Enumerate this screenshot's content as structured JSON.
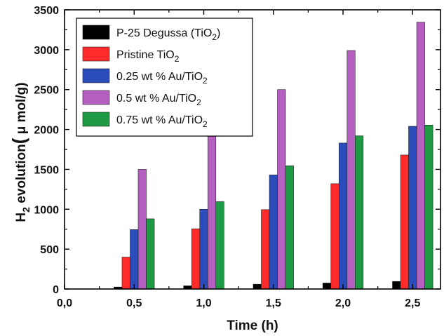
{
  "chart_data": {
    "type": "bar",
    "title": "",
    "xlabel": "Time (h)",
    "ylabel": {
      "main": "H",
      "sub": "2",
      "rest": " evolution",
      "paren_open": "(",
      "unit": " μ mol/g)"
    },
    "x": [
      0.5,
      1.0,
      1.5,
      2.0,
      2.5
    ],
    "xlim": [
      0.0,
      2.7
    ],
    "ylim": [
      0,
      3500
    ],
    "xticks": [
      0.0,
      0.5,
      1.0,
      1.5,
      2.0,
      2.5
    ],
    "xtick_labels": [
      "0,0",
      "0,5",
      "1,0",
      "1,5",
      "2,0",
      "2,5"
    ],
    "yticks": [
      0,
      500,
      1000,
      1500,
      2000,
      2500,
      3000,
      3500
    ],
    "ytick_labels": [
      "0",
      "500",
      "1000",
      "1500",
      "2000",
      "2500",
      "3000",
      "3500"
    ],
    "grid": false,
    "legend_position": "top-left",
    "series": [
      {
        "name": "P-25 Degussa (TiO",
        "name_sub": "2",
        "name_tail": ")",
        "color": "#000000",
        "values": [
          25,
          40,
          60,
          75,
          95
        ]
      },
      {
        "name": "Pristine TiO",
        "name_sub": "2",
        "name_tail": "",
        "color": "#ff2a2a",
        "values": [
          400,
          755,
          995,
          1320,
          1680
        ]
      },
      {
        "name": "0.25 wt % Au/TiO",
        "name_sub": "2",
        "name_tail": "",
        "color": "#2b4dbb",
        "values": [
          745,
          1000,
          1430,
          1830,
          2040
        ]
      },
      {
        "name": "0.5 wt % Au/TiO",
        "name_sub": "2",
        "name_tail": "",
        "color": "#b55fc0",
        "values": [
          1500,
          1955,
          2500,
          2990,
          3345
        ]
      },
      {
        "name": "0.75 wt % Au/TiO",
        "name_sub": "2",
        "name_tail": "",
        "color": "#1e9a45",
        "values": [
          880,
          1095,
          1545,
          1920,
          2055
        ]
      }
    ]
  }
}
